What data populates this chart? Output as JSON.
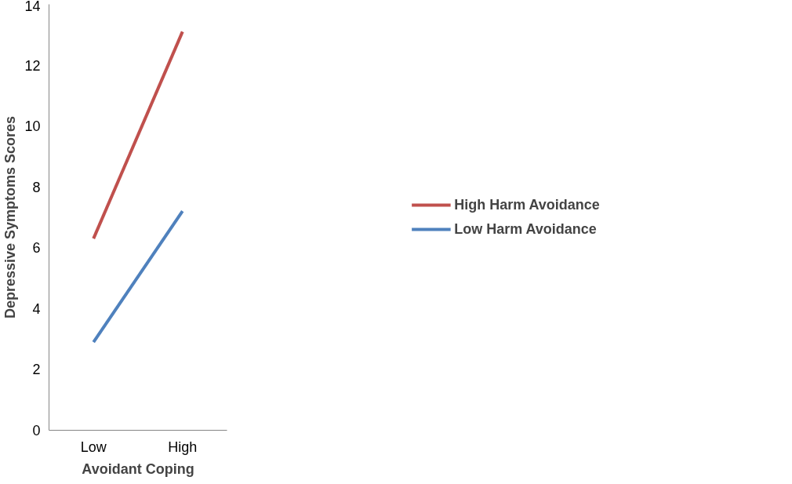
{
  "chart_data": {
    "type": "line",
    "xlabel": "Avoidant Coping",
    "ylabel": "Depressive Symptoms Scores",
    "categories": [
      "Low",
      "High"
    ],
    "series": [
      {
        "name": "High Harm Avoidance",
        "color": "#c0504d",
        "values": [
          6.3,
          13.1
        ]
      },
      {
        "name": "Low Harm Avoidance",
        "color": "#4f81bd",
        "values": [
          2.9,
          7.2
        ]
      }
    ],
    "ylim": [
      0,
      14
    ],
    "yticks": [
      0,
      2,
      4,
      6,
      8,
      10,
      12,
      14
    ],
    "grid": false,
    "legend": "right",
    "marker": "none",
    "line_style": "solid"
  }
}
